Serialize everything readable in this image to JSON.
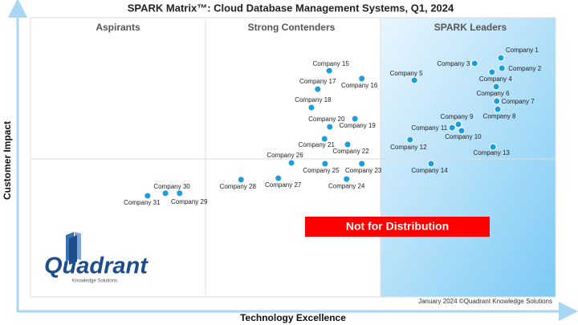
{
  "chart_data": {
    "type": "scatter",
    "title": "SPARK Matrix™:  Cloud Database Management Systems, Q1, 2024",
    "x_label": "Technology Excellence",
    "y_label": "Customer Impact",
    "quadrants": [
      "Aspirants",
      "Strong Contenders",
      "SPARK Leaders"
    ],
    "banner": "Not for Distribution",
    "logo": {
      "name": "Quadrant",
      "tagline": "Knowledge Solutions"
    },
    "footer": "January 2024 ©Quadrant Knowledge Solutions",
    "xlim": [
      0,
      100
    ],
    "ylim": [
      0,
      100
    ],
    "color": "#1a9ee0",
    "labels": [
      "Company 1",
      "Company 2",
      "Company 3",
      "Company 4",
      "Company 5",
      "Company 6",
      "Company 7",
      "Company 8",
      "Company 9",
      "Company 10",
      "Company 11",
      "Company 12",
      "Company 13",
      "Company 14",
      "Company 15",
      "Company 16",
      "Company 17",
      "Company 18",
      "Company 19",
      "Company 20",
      "Company 21",
      "Company 22",
      "Company 23",
      "Company 24",
      "Company 25",
      "Company 26",
      "Company 27",
      "Company 28",
      "Company 29",
      "Company 30",
      "Company 31"
    ],
    "x": [
      89.6,
      89.8,
      84.6,
      87.9,
      73.1,
      88.7,
      88.8,
      89.0,
      81.5,
      82.1,
      80.3,
      72.3,
      88.1,
      76.3,
      56.9,
      63.1,
      54.7,
      53.5,
      61.8,
      57.0,
      56.0,
      60.4,
      63.1,
      60.2,
      56.1,
      49.7,
      47.2,
      40.1,
      28.4,
      25.7,
      22.3
    ],
    "values": [
      85.6,
      81.9,
      83.6,
      80.5,
      77.6,
      75.3,
      70.1,
      67.2,
      61.8,
      59.5,
      60.6,
      56.3,
      53.7,
      47.7,
      81.0,
      78.2,
      74.4,
      67.8,
      63.8,
      60.9,
      56.6,
      54.6,
      47.7,
      42.2,
      47.7,
      48.0,
      42.5,
      42.0,
      37.1,
      37.1,
      36.2
    ]
  }
}
